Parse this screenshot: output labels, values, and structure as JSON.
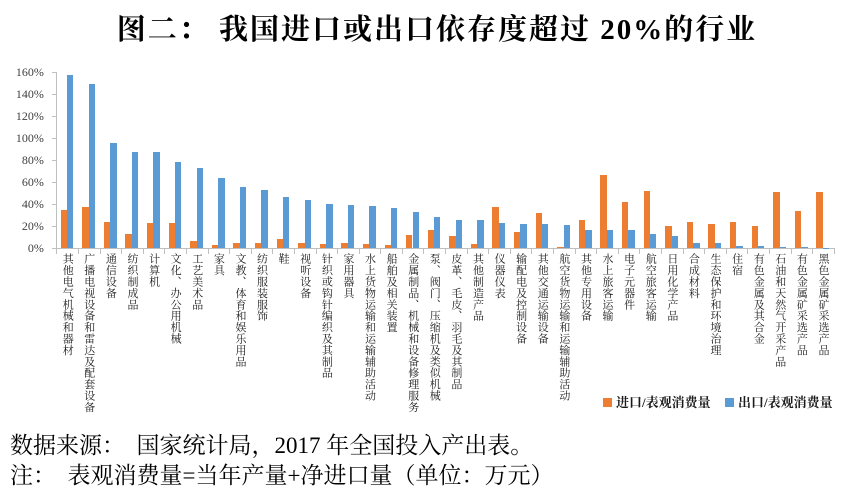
{
  "title": "图二： 我国进口或出口依存度超过 20%的行业",
  "legend": {
    "import": "进口/表观消费量",
    "export": "出口/表观消费量"
  },
  "notes": {
    "source": "数据来源：　国家统计局，2017 年全国投入产出表。",
    "definition": "注：　表观消费量=当年产量+净进口量（单位：万元）"
  },
  "colors": {
    "import": "#ED7D31",
    "export": "#5B9BD5",
    "axis": "#BFBFBF",
    "ytick_label": "#404040",
    "category_label": "#1A1A1A"
  },
  "chart_data": {
    "type": "bar",
    "title": "图二：我国进口或出口依存度超过 20%的行业",
    "xlabel": "",
    "ylabel": "",
    "ylim": [
      0,
      160
    ],
    "ytick_step": 20,
    "ytick_suffix": "%",
    "grid": false,
    "legend_position": "bottom-right",
    "categories": [
      "其他电气机械和器材",
      "广播电视设备和雷达及配套设备",
      "通信设备",
      "纺织制成品",
      "计算机",
      "文化、办公用机械",
      "工艺美术品",
      "家具",
      "文教、体育和娱乐用品",
      "纺织服装服饰",
      "鞋",
      "视听设备",
      "针织或钩针编织及其制品",
      "家用器具",
      "水上货物运输和运输辅助活动",
      "船舶及相关装置",
      "金属制品、机械和设备修理服务",
      "泵、阀门、压缩机及类似机械",
      "皮革、毛皮、羽毛及其制品",
      "其他制造产品",
      "仪器仪表",
      "输配电及控制设备",
      "其他交通运输设备",
      "航空货物运输和运输辅助活动",
      "其他专用设备",
      "水上旅客运输",
      "电子元器件",
      "航空旅客运输",
      "日用化学产品",
      "合成材料",
      "生态保护和环境治理",
      "住宿",
      "有色金属及其合金",
      "石油和天然气开采产品",
      "有色金属矿采选产品",
      "黑色金属矿采选产品"
    ],
    "series": [
      {
        "name": "进口/表观消费量",
        "color": "#ED7D31",
        "values": [
          35,
          37,
          24,
          13,
          23,
          23,
          6.5,
          3,
          4.5,
          5,
          8,
          5,
          3.5,
          5,
          3.5,
          3,
          12.5,
          17,
          11,
          4,
          37,
          15,
          32,
          1.5,
          25.5,
          66.5,
          42,
          51.5,
          20.5,
          24,
          22,
          23.5,
          20,
          51,
          34,
          51
        ]
      },
      {
        "name": "出口/表观消费量",
        "color": "#5B9BD5",
        "values": [
          157,
          149,
          95,
          87.5,
          87,
          78,
          73,
          64,
          55.5,
          52.5,
          46.5,
          44,
          40,
          39,
          38,
          36.5,
          32.5,
          28,
          26,
          25.5,
          22.5,
          22,
          22,
          21,
          17,
          17,
          16.5,
          13,
          11,
          5,
          5,
          2.5,
          2,
          1,
          1,
          0.5
        ]
      }
    ]
  }
}
